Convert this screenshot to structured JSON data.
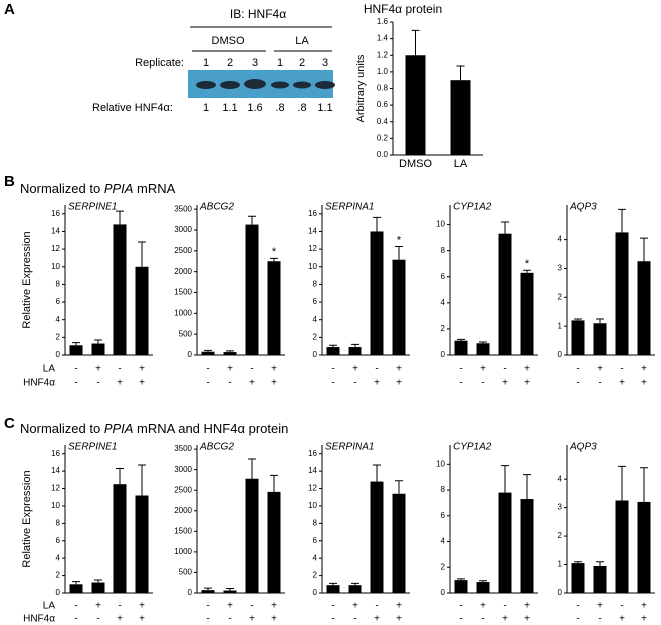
{
  "panels": {
    "a": "A",
    "b": "B",
    "c": "C"
  },
  "blot": {
    "title": "IB: HNF4α",
    "groups": [
      "DMSO",
      "LA"
    ],
    "replicate_label": "Replicate:",
    "replicates": [
      "1",
      "2",
      "3",
      "1",
      "2",
      "3"
    ],
    "relative_label": "Relative HNF4α:",
    "relative": [
      "1",
      "1.1",
      "1.6",
      ".8",
      ".8",
      "1.1"
    ]
  },
  "sections": [
    {
      "prefix": "Normalized to ",
      "italic": "PPIA",
      "suffix": " mRNA"
    },
    {
      "prefix": "Normalized to ",
      "italic": "PPIA",
      "suffix": " mRNA and HNF4α protein"
    }
  ],
  "treatments": [
    {
      "label": "LA",
      "signs": [
        "-",
        "+",
        "-",
        "+"
      ]
    },
    {
      "label": "HNF4α",
      "signs": [
        "-",
        "-",
        "+",
        "+"
      ]
    }
  ],
  "chart_data": [
    {
      "type": "bar",
      "title": "HNF4α protein",
      "ylabel": "Arbitrary units",
      "categories": [
        "DMSO",
        "LA"
      ],
      "values": [
        1.2,
        0.9
      ],
      "errors": [
        0.3,
        0.17
      ],
      "color": "#000000",
      "ylim": [
        0,
        1.6
      ],
      "yticks": [
        {
          "value": 0,
          "label": "0.0"
        },
        {
          "value": 0.2,
          "label": "0.2"
        },
        {
          "value": 0.4,
          "label": "0.4"
        },
        {
          "value": 0.6,
          "label": "0.6"
        },
        {
          "value": 0.8,
          "label": "0.8"
        },
        {
          "value": 1,
          "label": "1.0"
        },
        {
          "value": 1.2,
          "label": "1.2"
        },
        {
          "value": 1.4,
          "label": "1.4"
        },
        {
          "value": 1.6,
          "label": "1.6"
        }
      ]
    },
    {
      "type": "bar",
      "title": "SERPINE1",
      "ylabel": "Relative Expression",
      "values": [
        1.1,
        1.3,
        14.8,
        10.0
      ],
      "errors": [
        0.3,
        0.4,
        1.5,
        2.8
      ],
      "color": "#000000",
      "ylim": [
        0,
        17
      ],
      "yticks": [
        0,
        2,
        4,
        6,
        8,
        10,
        12,
        14,
        16
      ]
    },
    {
      "type": "bar",
      "title": "ABCG2",
      "values": [
        80,
        70,
        3130,
        2250
      ],
      "errors": [
        30,
        30,
        200,
        70
      ],
      "significance": [
        null,
        null,
        null,
        "*"
      ],
      "color": "#000000",
      "ylim": [
        0,
        3600
      ],
      "yticks": [
        0,
        500,
        1000,
        1500,
        2000,
        2500,
        3000,
        3500
      ]
    },
    {
      "type": "bar",
      "title": "SERPINA1",
      "values": [
        0.9,
        0.9,
        14.0,
        10.8
      ],
      "errors": [
        0.2,
        0.3,
        1.6,
        1.5
      ],
      "significance": [
        null,
        null,
        null,
        "*"
      ],
      "color": "#000000",
      "ylim": [
        0,
        17
      ],
      "yticks": [
        0,
        2,
        4,
        6,
        8,
        10,
        12,
        14,
        16
      ]
    },
    {
      "type": "bar",
      "title": "CYP1A2",
      "values": [
        1.1,
        0.9,
        9.3,
        6.3
      ],
      "errors": [
        0.1,
        0.1,
        0.9,
        0.2
      ],
      "significance": [
        null,
        null,
        null,
        "*"
      ],
      "color": "#000000",
      "ylim": [
        0,
        11.5
      ],
      "yticks": [
        0,
        2,
        4,
        6,
        8,
        10
      ]
    },
    {
      "type": "bar",
      "title": "AQP3",
      "values": [
        1.2,
        1.1,
        4.25,
        3.25
      ],
      "errors": [
        0.05,
        0.15,
        0.8,
        0.8
      ],
      "color": "#000000",
      "ylim": [
        0,
        5.2
      ],
      "yticks": [
        0,
        1,
        2,
        3,
        4
      ]
    },
    {
      "type": "bar",
      "title": "SERPINE1",
      "ylabel": "Relative Expression",
      "values": [
        1.0,
        1.2,
        12.5,
        11.2
      ],
      "errors": [
        0.3,
        0.3,
        1.8,
        3.5
      ],
      "color": "#000000",
      "ylim": [
        0,
        17
      ],
      "yticks": [
        0,
        2,
        4,
        6,
        8,
        10,
        12,
        14,
        16
      ]
    },
    {
      "type": "bar",
      "title": "ABCG2",
      "values": [
        70,
        60,
        2780,
        2460
      ],
      "errors": [
        50,
        50,
        480,
        400
      ],
      "color": "#000000",
      "ylim": [
        0,
        3600
      ],
      "yticks": [
        0,
        500,
        1000,
        1500,
        2000,
        2500,
        3000,
        3500
      ]
    },
    {
      "type": "bar",
      "title": "SERPINA1",
      "values": [
        0.9,
        0.9,
        12.8,
        11.4
      ],
      "errors": [
        0.2,
        0.2,
        1.9,
        1.5
      ],
      "color": "#000000",
      "ylim": [
        0,
        17
      ],
      "yticks": [
        0,
        2,
        4,
        6,
        8,
        10,
        12,
        14,
        16
      ]
    },
    {
      "type": "bar",
      "title": "CYP1A2",
      "values": [
        1.0,
        0.85,
        7.8,
        7.3
      ],
      "errors": [
        0.1,
        0.1,
        2.1,
        1.9
      ],
      "color": "#000000",
      "ylim": [
        0,
        11.5
      ],
      "yticks": [
        0,
        2,
        4,
        6,
        8,
        10
      ]
    },
    {
      "type": "bar",
      "title": "AQP3",
      "values": [
        1.05,
        0.95,
        3.25,
        3.2
      ],
      "errors": [
        0.05,
        0.15,
        1.2,
        1.2
      ],
      "color": "#000000",
      "ylim": [
        0,
        5.2
      ],
      "yticks": [
        0,
        1,
        2,
        3,
        4
      ]
    }
  ]
}
